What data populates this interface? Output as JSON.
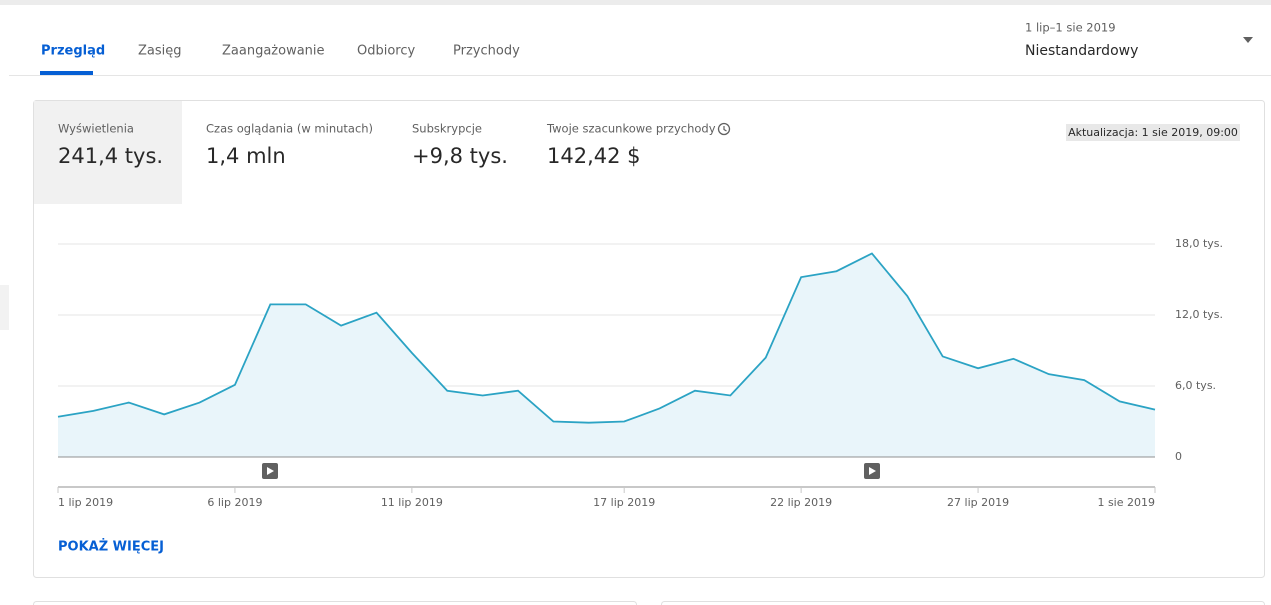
{
  "tabs": [
    "Przegląd",
    "Zasięg",
    "Zaangażowanie",
    "Odbiorcy",
    "Przychody"
  ],
  "date_range": {
    "period": "1 lip–1 sie 2019",
    "label": "Niestandardowy"
  },
  "metrics": [
    {
      "label": "Wyświetlenia",
      "value": "241,4 tys."
    },
    {
      "label": "Czas oglądania (w minutach)",
      "value": "1,4 mln"
    },
    {
      "label": "Subskrypcje",
      "value": "+9,8 tys."
    },
    {
      "label": "Twoje szacunkowe przychody",
      "value": "142,42 $"
    }
  ],
  "updated": "Aktualizacja: 1 sie 2019, 09:00",
  "chart_data": {
    "type": "line",
    "categories": [
      "1 lip 2019",
      null,
      null,
      null,
      null,
      "6 lip 2019",
      null,
      null,
      null,
      null,
      "11 lip 2019",
      null,
      null,
      null,
      null,
      null,
      "17 lip 2019",
      null,
      null,
      null,
      null,
      "22 lip 2019",
      null,
      null,
      null,
      null,
      "27 lip 2019",
      null,
      null,
      null,
      null,
      "1 sie 2019"
    ],
    "series": [
      {
        "color": "#2ba3c4",
        "values": [
          3.4,
          3.9,
          4.6,
          3.6,
          4.6,
          6.1,
          12.9,
          12.9,
          11.1,
          12.2,
          8.8,
          5.6,
          5.2,
          5.6,
          3.0,
          2.9,
          3.0,
          4.1,
          5.6,
          5.2,
          8.4,
          15.2,
          15.7,
          17.2,
          13.6,
          8.5,
          7.5,
          8.3,
          7.0,
          6.5,
          4.7,
          4.0
        ]
      }
    ],
    "ylim": [
      0,
      18
    ],
    "yticks": [
      0,
      {
        "value": 6,
        "label": "6,0 tys."
      },
      {
        "value": 12,
        "label": "12,0 tys."
      },
      {
        "value": 18,
        "label": "18,0 tys."
      }
    ],
    "grid": true
  },
  "show_more": "POKAŻ WIĘCEJ"
}
